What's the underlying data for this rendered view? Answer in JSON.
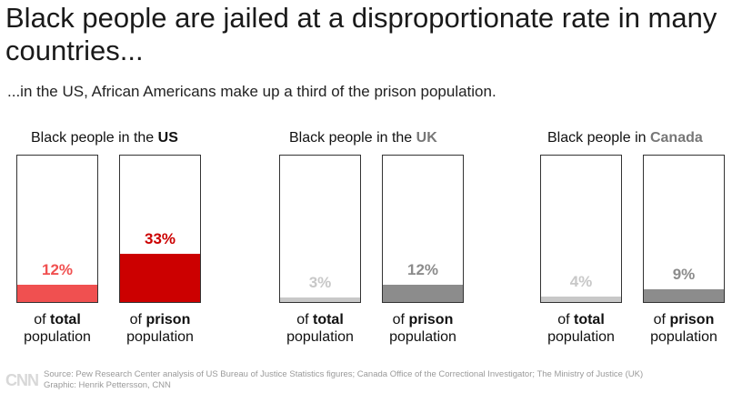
{
  "title": "Black people are jailed at a disproportionate rate in many countries...",
  "subtitle": "...in the US, African Americans make up a third of the prison population.",
  "caption_of": "of",
  "caption_population": "population",
  "chart_data": [
    {
      "type": "bar",
      "country": "US",
      "title_prefix": "Black people in the",
      "title_country": "US",
      "country_color": "#111111",
      "categories": [
        "total",
        "prison"
      ],
      "values": [
        12,
        33
      ],
      "labels": [
        "12%",
        "33%"
      ],
      "colors": [
        "#f05050",
        "#cc0000"
      ],
      "ylim": [
        0,
        100
      ]
    },
    {
      "type": "bar",
      "country": "UK",
      "title_prefix": "Black people in the",
      "title_country": "UK",
      "country_color": "#777777",
      "categories": [
        "total",
        "prison"
      ],
      "values": [
        3,
        12
      ],
      "labels": [
        "3%",
        "12%"
      ],
      "colors": [
        "#c8c8c8",
        "#8c8c8c"
      ],
      "ylim": [
        0,
        100
      ]
    },
    {
      "type": "bar",
      "country": "Canada",
      "title_prefix": "Black people in",
      "title_country": "Canada",
      "country_color": "#777777",
      "categories": [
        "total",
        "prison"
      ],
      "values": [
        4,
        9
      ],
      "labels": [
        "4%",
        "9%"
      ],
      "colors": [
        "#c8c8c8",
        "#8c8c8c"
      ],
      "ylim": [
        0,
        100
      ]
    }
  ],
  "footer": {
    "logo": "CNN",
    "source": "Source: Pew Research Center analysis of US Bureau of Justice Statistics figures; Canada Office of the Correctional Investigator; The Ministry of Justice (UK)",
    "graphic": "Graphic: Henrik Pettersson, CNN"
  }
}
